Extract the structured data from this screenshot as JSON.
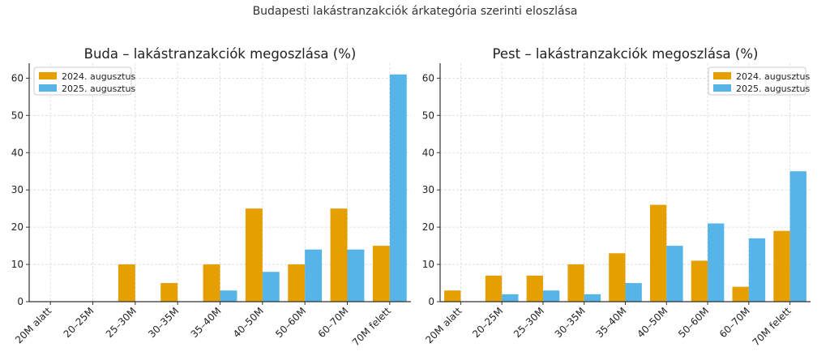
{
  "suptitle": "Budapesti lakástranzakciók árkategória szerinti eloszlása",
  "colors": {
    "y2024": "#E69F00",
    "y2025": "#56B4E9",
    "grid": "#d9d9d9",
    "axis": "#333333"
  },
  "chart_data": [
    {
      "type": "bar",
      "title": "Buda – lakástranzakciók megoszlása (%)",
      "xlabel": "",
      "ylabel": "",
      "categories": [
        "20M alatt",
        "20–25M",
        "25–30M",
        "30–35M",
        "35–40M",
        "40–50M",
        "50–60M",
        "60–70M",
        "70M felett"
      ],
      "series": [
        {
          "name": "2024. augusztus",
          "values": [
            0,
            0,
            10,
            5,
            10,
            25,
            10,
            25,
            15
          ]
        },
        {
          "name": "2025. augusztus",
          "values": [
            0,
            0,
            0,
            0,
            3,
            8,
            14,
            14,
            61
          ]
        }
      ],
      "ylim": [
        0,
        64
      ],
      "yticks": [
        0,
        10,
        20,
        30,
        40,
        50,
        60
      ],
      "grid": true,
      "legend": "top-left"
    },
    {
      "type": "bar",
      "title": "Pest – lakástranzakciók megoszlása (%)",
      "xlabel": "",
      "ylabel": "",
      "categories": [
        "20M alatt",
        "20–25M",
        "25–30M",
        "30–35M",
        "35–40M",
        "40–50M",
        "50–60M",
        "60–70M",
        "70M felett"
      ],
      "series": [
        {
          "name": "2024. augusztus",
          "values": [
            3,
            7,
            7,
            10,
            13,
            26,
            11,
            4,
            19
          ]
        },
        {
          "name": "2025. augusztus",
          "values": [
            0,
            2,
            3,
            2,
            5,
            15,
            21,
            17,
            35
          ]
        }
      ],
      "ylim": [
        0,
        64
      ],
      "yticks": [
        0,
        10,
        20,
        30,
        40,
        50,
        60
      ],
      "grid": true,
      "legend": "top-right"
    }
  ]
}
